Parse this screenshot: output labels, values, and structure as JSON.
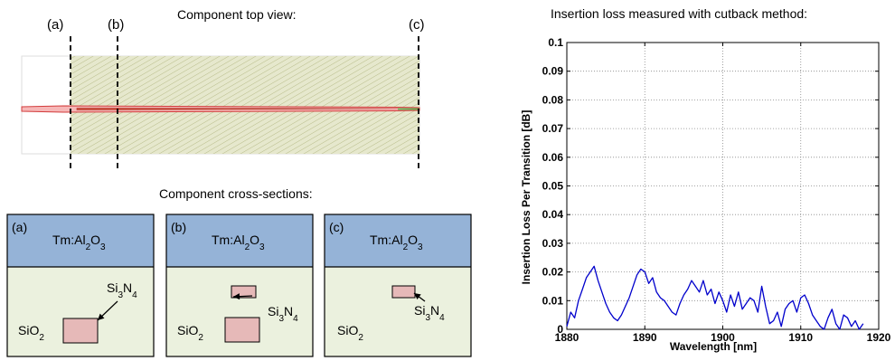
{
  "top_view": {
    "title": "Component top view:",
    "markers": [
      "(a)",
      "(b)",
      "(c)"
    ]
  },
  "cross_sections": {
    "title": "Component cross-sections:",
    "panels": [
      {
        "label": "(a)",
        "cladding_prefix": "Tm:Al",
        "cladding_sub1": "2",
        "cladding_mid": "O",
        "cladding_sub2": "3",
        "substrate": "SiO",
        "substrate_sub": "2",
        "core": "Si",
        "core_sub1": "3",
        "core_mid": "N",
        "core_sub2": "4"
      },
      {
        "label": "(b)",
        "cladding_prefix": "Tm:Al",
        "cladding_sub1": "2",
        "cladding_mid": "O",
        "cladding_sub2": "3",
        "substrate": "SiO",
        "substrate_sub": "2",
        "core": "Si",
        "core_sub1": "3",
        "core_mid": "N",
        "core_sub2": "4"
      },
      {
        "label": "(c)",
        "cladding_prefix": "Tm:Al",
        "cladding_sub1": "2",
        "cladding_mid": "O",
        "cladding_sub2": "3",
        "substrate": "SiO",
        "substrate_sub": "2",
        "core": "Si",
        "core_sub1": "3",
        "core_mid": "N",
        "core_sub2": "4"
      }
    ]
  },
  "colors": {
    "cladding": "#95b3d7",
    "substrate": "#ebf1de",
    "core": "#e6b9b8",
    "line": "#0000cc"
  },
  "chart_data": {
    "type": "line",
    "title": "Insertion loss measured with cutback method:",
    "xlabel": "Wavelength [nm]",
    "ylabel": "Insertion Loss Per Transition [dB]",
    "xlim": [
      1880,
      1920
    ],
    "ylim": [
      0,
      0.1
    ],
    "x_ticks": [
      "1880",
      "1890",
      "1900",
      "1910",
      "1920"
    ],
    "y_ticks": [
      "0",
      "0.01",
      "0.02",
      "0.03",
      "0.04",
      "0.05",
      "0.06",
      "0.07",
      "0.08",
      "0.09",
      "0.1"
    ],
    "grid": true,
    "series": [
      {
        "x": [
          1880.0,
          1880.5,
          1881.0,
          1881.5,
          1882.0,
          1882.5,
          1883.0,
          1883.5,
          1884.0,
          1884.5,
          1885.0,
          1885.5,
          1886.0,
          1886.5,
          1887.0,
          1887.5,
          1888.0,
          1888.5,
          1889.0,
          1889.5,
          1890.0,
          1890.5,
          1891.0,
          1891.5,
          1892.0,
          1892.5,
          1893.0,
          1893.5,
          1894.0,
          1894.5,
          1895.0,
          1895.5,
          1896.0,
          1896.5,
          1897.0,
          1897.5,
          1898.0,
          1898.5,
          1899.0,
          1899.5,
          1900.0,
          1900.5,
          1901.0,
          1901.5,
          1902.0,
          1902.5,
          1903.0,
          1903.5,
          1904.0,
          1904.5,
          1905.0,
          1905.5,
          1906.0,
          1906.5,
          1907.0,
          1907.5,
          1908.0,
          1908.5,
          1909.0,
          1909.5,
          1910.0,
          1910.5,
          1911.0,
          1911.5,
          1912.0,
          1912.5,
          1913.0,
          1913.5,
          1914.0,
          1914.5,
          1915.0,
          1915.5,
          1916.0,
          1916.5,
          1917.0,
          1917.5,
          1918.0
        ],
        "y": [
          0.001,
          0.006,
          0.004,
          0.01,
          0.014,
          0.018,
          0.02,
          0.022,
          0.017,
          0.013,
          0.009,
          0.006,
          0.004,
          0.003,
          0.005,
          0.008,
          0.011,
          0.015,
          0.019,
          0.021,
          0.02,
          0.016,
          0.018,
          0.013,
          0.011,
          0.01,
          0.008,
          0.006,
          0.005,
          0.009,
          0.012,
          0.014,
          0.017,
          0.015,
          0.013,
          0.017,
          0.012,
          0.014,
          0.009,
          0.013,
          0.01,
          0.006,
          0.012,
          0.008,
          0.013,
          0.007,
          0.009,
          0.011,
          0.01,
          0.006,
          0.015,
          0.008,
          0.002,
          0.003,
          0.006,
          0.001,
          0.007,
          0.009,
          0.01,
          0.006,
          0.011,
          0.012,
          0.009,
          0.005,
          0.003,
          0.001,
          0.0,
          0.004,
          0.007,
          0.002,
          0.0,
          0.005,
          0.004,
          0.001,
          0.003,
          0.0,
          0.002
        ]
      }
    ]
  }
}
